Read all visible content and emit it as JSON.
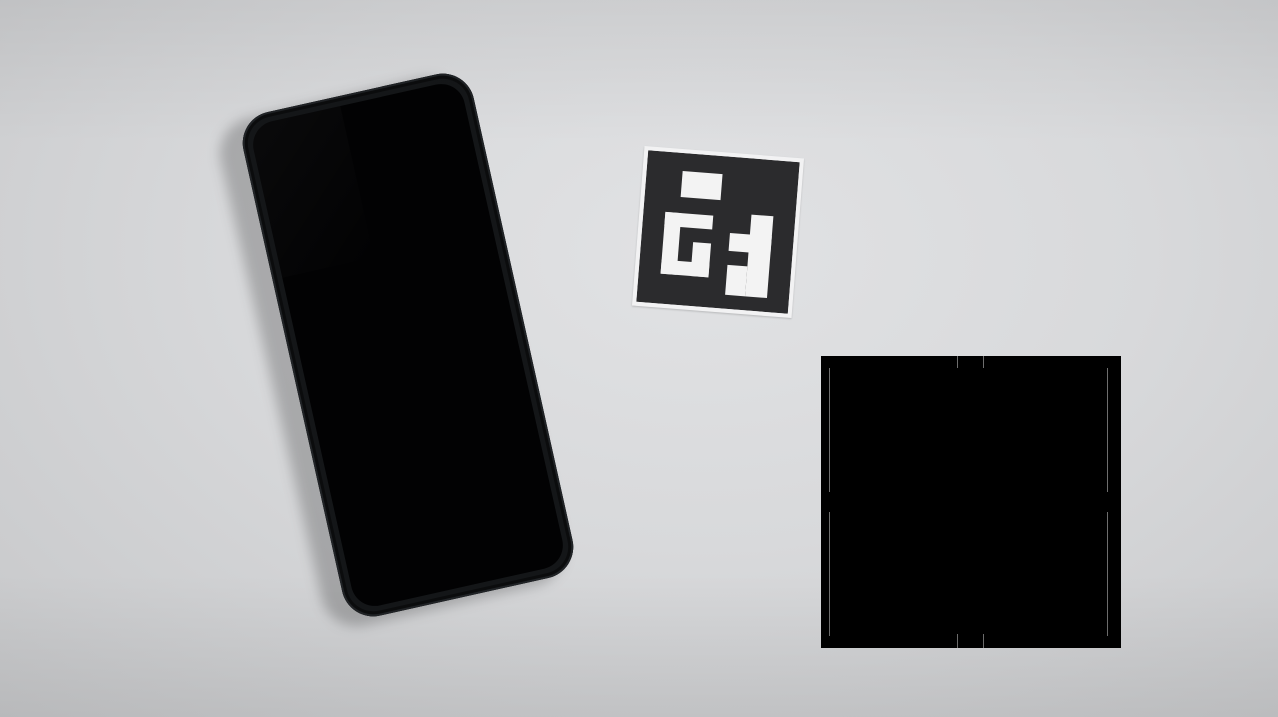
{
  "scene": {
    "background_color": "#d9dadc",
    "objects": [
      {
        "name": "smartphone",
        "color": "#141618",
        "screen": "off"
      },
      {
        "name": "fiducial-marker",
        "type": "ArUco-style square marker",
        "card_color": "#f2f2f3",
        "ink_color": "#2b2b2d"
      },
      {
        "name": "redacted-region",
        "color": "#000000"
      }
    ]
  }
}
